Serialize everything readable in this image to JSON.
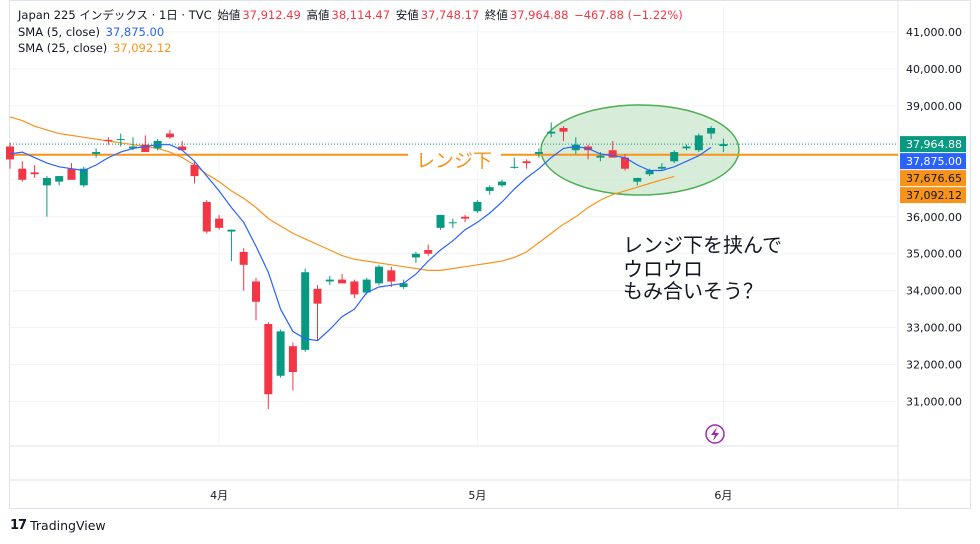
{
  "header": {
    "symbol": "Japan 225 インデックス · 1日 · TVC",
    "open_label": "始値",
    "open": "37,912.49",
    "high_label": "高値",
    "high": "38,114.47",
    "low_label": "安値",
    "low": "37,748.17",
    "close_label": "終値",
    "close": "37,964.88",
    "change": "−467.88 (−1.22%)",
    "sma5_label": "SMA (5, close)",
    "sma5_value": "37,875.00",
    "sma25_label": "SMA (25, close)",
    "sma25_value": "37,092.12"
  },
  "annotations": {
    "range_label": "レンジ下",
    "note_line1": "レンジ下を挟んで",
    "note_line2": "ウロウロ",
    "note_line3": "もみ合いそう？"
  },
  "price_badges": {
    "last": "37,964.88",
    "sma5": "37,875.00",
    "range_line": "37,676.65",
    "sma25": "37,092.12"
  },
  "footer": {
    "brand": "TradingView"
  },
  "colors": {
    "up": "#089981",
    "down": "#f23645",
    "sma5": "#2962ff",
    "sma25": "#f7931a",
    "range_line": "#f7931a",
    "ellipse_stroke": "#4caf50",
    "ellipse_fill": "#c8e6c9"
  },
  "chart_data": {
    "type": "candlestick",
    "y_ticks": [
      "31,000.00",
      "32,000.00",
      "33,000.00",
      "34,000.00",
      "35,000.00",
      "36,000.00",
      "37,000.00",
      "38,000.00",
      "39,000.00",
      "40,000.00",
      "41,000.00"
    ],
    "y_tick_values": [
      31000,
      32000,
      33000,
      34000,
      35000,
      36000,
      37000,
      38000,
      39000,
      40000,
      41000
    ],
    "x_ticks": [
      {
        "label": "4月",
        "index": 17
      },
      {
        "label": "5月",
        "index": 38
      },
      {
        "label": "6月",
        "index": 58
      }
    ],
    "ylim": [
      29800,
      41700
    ],
    "range_line_value": 37676.65,
    "candles": [
      {
        "o": 37900,
        "h": 38000,
        "l": 37300,
        "c": 37550
      },
      {
        "o": 37300,
        "h": 37500,
        "l": 36950,
        "c": 37000
      },
      {
        "o": 37200,
        "h": 37400,
        "l": 37050,
        "c": 37150
      },
      {
        "o": 36850,
        "h": 37100,
        "l": 36000,
        "c": 37050
      },
      {
        "o": 36950,
        "h": 37100,
        "l": 36850,
        "c": 37100
      },
      {
        "o": 37300,
        "h": 37450,
        "l": 37050,
        "c": 37000
      },
      {
        "o": 36850,
        "h": 37350,
        "l": 36800,
        "c": 37300
      },
      {
        "o": 37700,
        "h": 37850,
        "l": 37600,
        "c": 37750
      },
      {
        "o": 38080,
        "h": 38150,
        "l": 37950,
        "c": 38050
      },
      {
        "o": 38100,
        "h": 38250,
        "l": 37900,
        "c": 38100
      },
      {
        "o": 37850,
        "h": 38150,
        "l": 37800,
        "c": 37900
      },
      {
        "o": 37950,
        "h": 38200,
        "l": 37850,
        "c": 37750
      },
      {
        "o": 37850,
        "h": 38100,
        "l": 37800,
        "c": 38050
      },
      {
        "o": 38250,
        "h": 38350,
        "l": 38100,
        "c": 38150
      },
      {
        "o": 37900,
        "h": 38050,
        "l": 37800,
        "c": 37800
      },
      {
        "o": 37400,
        "h": 37500,
        "l": 36900,
        "c": 37100
      },
      {
        "o": 36400,
        "h": 36450,
        "l": 35550,
        "c": 35600
      },
      {
        "o": 35950,
        "h": 36050,
        "l": 35650,
        "c": 35700
      },
      {
        "o": 35600,
        "h": 35650,
        "l": 34800,
        "c": 35650
      },
      {
        "o": 35050,
        "h": 35150,
        "l": 34000,
        "c": 34700
      },
      {
        "o": 34250,
        "h": 34350,
        "l": 33200,
        "c": 33700
      },
      {
        "o": 33100,
        "h": 33150,
        "l": 30800,
        "c": 31200
      },
      {
        "o": 31700,
        "h": 32950,
        "l": 31650,
        "c": 32900
      },
      {
        "o": 32500,
        "h": 32600,
        "l": 31300,
        "c": 31800
      },
      {
        "o": 32400,
        "h": 34600,
        "l": 32350,
        "c": 34500
      },
      {
        "o": 34050,
        "h": 34150,
        "l": 32650,
        "c": 33650
      },
      {
        "o": 34250,
        "h": 34400,
        "l": 34150,
        "c": 34300
      },
      {
        "o": 34300,
        "h": 34450,
        "l": 34200,
        "c": 34200
      },
      {
        "o": 34250,
        "h": 34300,
        "l": 33800,
        "c": 33900
      },
      {
        "o": 33950,
        "h": 34350,
        "l": 33900,
        "c": 34300
      },
      {
        "o": 34200,
        "h": 34700,
        "l": 34150,
        "c": 34650
      },
      {
        "o": 34550,
        "h": 34650,
        "l": 34100,
        "c": 34250
      },
      {
        "o": 34100,
        "h": 34300,
        "l": 34050,
        "c": 34200
      },
      {
        "o": 34900,
        "h": 35050,
        "l": 34750,
        "c": 35000
      },
      {
        "o": 35100,
        "h": 35250,
        "l": 34950,
        "c": 35000
      },
      {
        "o": 35700,
        "h": 36050,
        "l": 35650,
        "c": 36050
      },
      {
        "o": 35850,
        "h": 35950,
        "l": 35700,
        "c": 35850
      },
      {
        "o": 36000,
        "h": 36050,
        "l": 35850,
        "c": 35950
      },
      {
        "o": 36150,
        "h": 36450,
        "l": 36100,
        "c": 36400
      },
      {
        "o": 36700,
        "h": 36850,
        "l": 36600,
        "c": 36800
      },
      {
        "o": 36850,
        "h": 37000,
        "l": 36800,
        "c": 36950
      },
      {
        "o": 37350,
        "h": 37600,
        "l": 37300,
        "c": 37350
      },
      {
        "o": 37500,
        "h": 37550,
        "l": 37300,
        "c": 37450
      },
      {
        "o": 37700,
        "h": 37850,
        "l": 37600,
        "c": 37750
      },
      {
        "o": 38250,
        "h": 38550,
        "l": 38150,
        "c": 38300
      },
      {
        "o": 38400,
        "h": 38450,
        "l": 38050,
        "c": 38300
      },
      {
        "o": 37800,
        "h": 38150,
        "l": 37700,
        "c": 37950
      },
      {
        "o": 37900,
        "h": 37950,
        "l": 37550,
        "c": 37800
      },
      {
        "o": 37600,
        "h": 37750,
        "l": 37500,
        "c": 37650
      },
      {
        "o": 37800,
        "h": 38050,
        "l": 37600,
        "c": 37600
      },
      {
        "o": 37600,
        "h": 37700,
        "l": 37250,
        "c": 37300
      },
      {
        "o": 36950,
        "h": 37050,
        "l": 36850,
        "c": 37050
      },
      {
        "o": 37150,
        "h": 37300,
        "l": 37100,
        "c": 37250
      },
      {
        "o": 37300,
        "h": 37450,
        "l": 37250,
        "c": 37350
      },
      {
        "o": 37500,
        "h": 37800,
        "l": 37450,
        "c": 37750
      },
      {
        "o": 37850,
        "h": 37950,
        "l": 37800,
        "c": 37900
      },
      {
        "o": 37800,
        "h": 38250,
        "l": 37750,
        "c": 38200
      },
      {
        "o": 38250,
        "h": 38450,
        "l": 38100,
        "c": 38400
      },
      {
        "o": 37912.49,
        "h": 38114.47,
        "l": 37748.17,
        "c": 37964.88
      }
    ],
    "sma5": [
      37700,
      37750,
      37600,
      37450,
      37350,
      37300,
      37250,
      37400,
      37600,
      37750,
      37850,
      37900,
      37950,
      37950,
      37800,
      37500,
      37100,
      36700,
      36250,
      35850,
      35200,
      34500,
      33500,
      32900,
      32700,
      32650,
      32950,
      33300,
      33500,
      33950,
      34100,
      34150,
      34200,
      34450,
      34800,
      35100,
      35350,
      35650,
      35850,
      36100,
      36400,
      36750,
      37050,
      37300,
      37600,
      37850,
      37900,
      37850,
      37700,
      37650,
      37600,
      37400,
      37250,
      37250,
      37350,
      37500,
      37650,
      37875
    ],
    "sma25": [
      38700,
      38600,
      38450,
      38350,
      38250,
      38200,
      38150,
      38100,
      38050,
      38000,
      37950,
      37900,
      37850,
      37750,
      37600,
      37400,
      37150,
      36950,
      36700,
      36500,
      36250,
      35950,
      35750,
      35550,
      35400,
      35250,
      35100,
      34950,
      34850,
      34800,
      34750,
      34700,
      34650,
      34600,
      34550,
      34550,
      34600,
      34650,
      34700,
      34750,
      34800,
      34900,
      35050,
      35300,
      35550,
      35800,
      36000,
      36250,
      36450,
      36600,
      36700,
      36800,
      36900,
      37000,
      37092.12
    ],
    "x_label": "",
    "y_label": ""
  }
}
